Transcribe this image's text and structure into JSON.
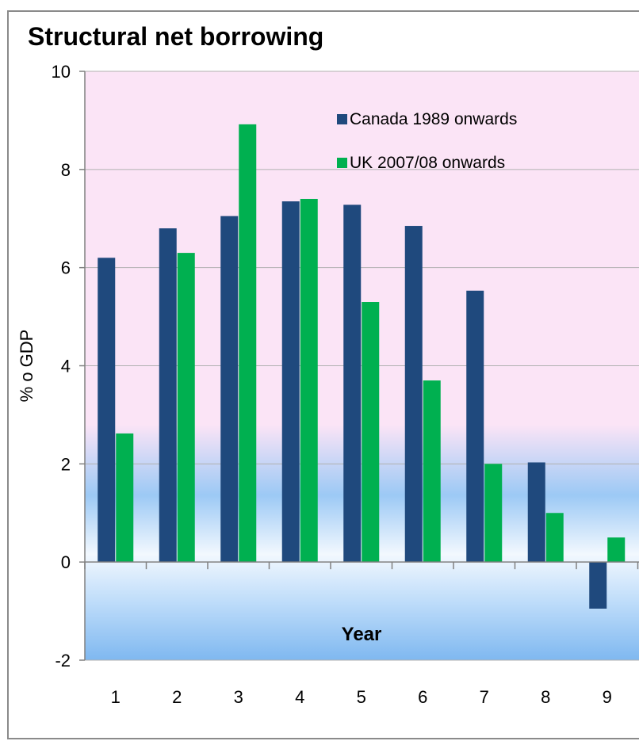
{
  "chart_data": {
    "type": "bar",
    "title": "Structural net borrowing",
    "ylabel": "% o GDP",
    "xlabel": "Year",
    "ylim": [
      -2,
      10
    ],
    "yticks": [
      -2,
      0,
      2,
      4,
      6,
      8,
      10
    ],
    "categories": [
      "1",
      "2",
      "3",
      "4",
      "5",
      "6",
      "7",
      "8",
      "9"
    ],
    "series": [
      {
        "name": "Canada 1989 onwards",
        "color": "#1F497D",
        "values": [
          6.2,
          6.8,
          7.05,
          7.35,
          7.28,
          6.85,
          5.53,
          2.03,
          -0.95
        ]
      },
      {
        "name": "UK 2007/08 onwards",
        "color": "#00B050",
        "values": [
          2.62,
          6.3,
          8.92,
          7.4,
          5.3,
          3.7,
          2.0,
          1.0,
          0.5
        ]
      }
    ],
    "legend_position": "top-right",
    "grid": true,
    "gridline_color": "#B0B0B0",
    "plot_background": {
      "top": "#FBE4F6",
      "bottom": "#9CC9F5"
    }
  }
}
